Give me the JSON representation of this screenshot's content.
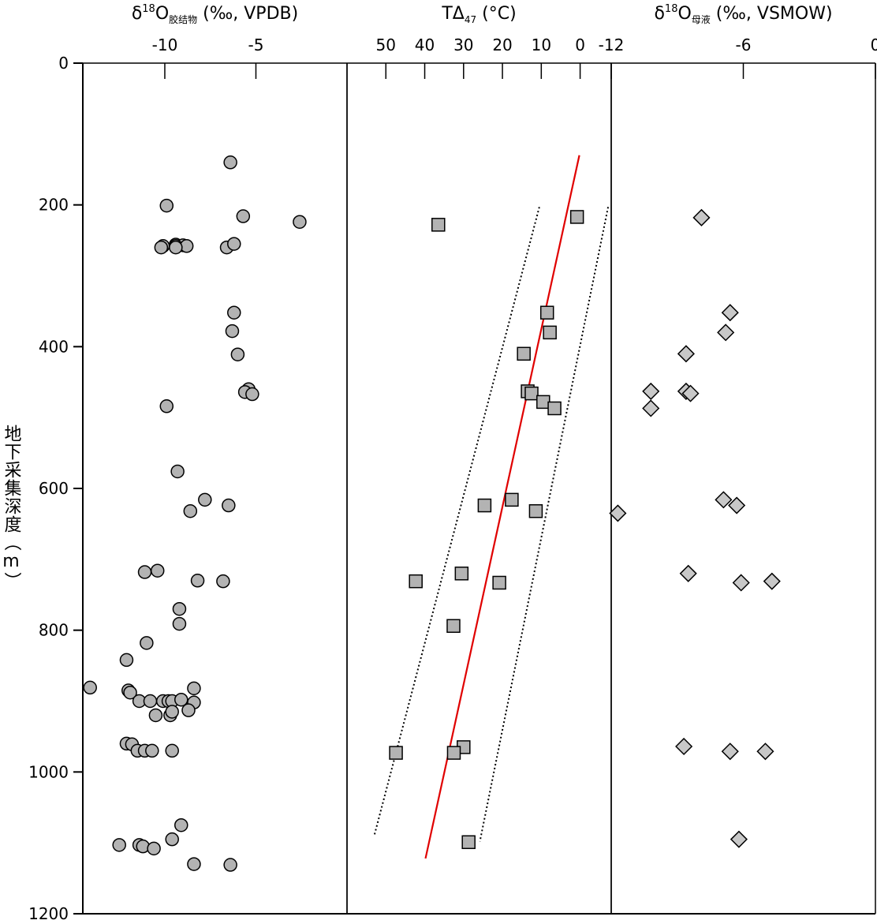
{
  "chart_data": [
    {
      "type": "scatter",
      "panel": "left",
      "title": {
        "main": "δ",
        "sup": "18",
        "o": "O",
        "sub": "胶结物",
        "rest": " (‰, VPDB)"
      },
      "xlim": [
        -14.5,
        0
      ],
      "xticks": [
        -10,
        -5
      ],
      "xticklabels": [
        "-10",
        "-5"
      ],
      "marker": "circle",
      "marker_color": "#b3b3b3",
      "points": [
        [
          -6.4,
          140
        ],
        [
          -9.9,
          201
        ],
        [
          -5.7,
          216
        ],
        [
          -2.6,
          224
        ],
        [
          -9.4,
          256
        ],
        [
          -9.0,
          257
        ],
        [
          -9.4,
          258
        ],
        [
          -10.1,
          258
        ],
        [
          -8.8,
          258
        ],
        [
          -10.2,
          260
        ],
        [
          -9.4,
          260
        ],
        [
          -6.6,
          260
        ],
        [
          -6.2,
          255
        ],
        [
          -6.2,
          352
        ],
        [
          -6.3,
          378
        ],
        [
          -6.0,
          411
        ],
        [
          -5.4,
          460
        ],
        [
          -5.6,
          464
        ],
        [
          -5.2,
          467
        ],
        [
          -9.9,
          484
        ],
        [
          -9.3,
          576
        ],
        [
          -7.8,
          616
        ],
        [
          -6.5,
          624
        ],
        [
          -8.6,
          632
        ],
        [
          -11.1,
          718
        ],
        [
          -10.4,
          716
        ],
        [
          -8.2,
          730
        ],
        [
          -6.8,
          731
        ],
        [
          -9.2,
          770
        ],
        [
          -9.2,
          791
        ],
        [
          -11.0,
          818
        ],
        [
          -12.1,
          842
        ],
        [
          -14.1,
          881
        ],
        [
          -12.0,
          885
        ],
        [
          -11.9,
          888
        ],
        [
          -8.4,
          882
        ],
        [
          -11.4,
          900
        ],
        [
          -10.8,
          900
        ],
        [
          -10.1,
          900
        ],
        [
          -9.8,
          900
        ],
        [
          -9.6,
          900
        ],
        [
          -9.1,
          898
        ],
        [
          -8.4,
          902
        ],
        [
          -10.5,
          920
        ],
        [
          -9.7,
          920
        ],
        [
          -8.7,
          913
        ],
        [
          -9.6,
          915
        ],
        [
          -12.1,
          960
        ],
        [
          -11.8,
          961
        ],
        [
          -11.5,
          970
        ],
        [
          -11.1,
          970
        ],
        [
          -10.7,
          970
        ],
        [
          -9.6,
          970
        ],
        [
          -9.1,
          1075
        ],
        [
          -9.6,
          1095
        ],
        [
          -12.5,
          1103
        ],
        [
          -11.4,
          1103
        ],
        [
          -11.2,
          1105
        ],
        [
          -10.6,
          1108
        ],
        [
          -8.4,
          1130
        ],
        [
          -6.4,
          1131
        ]
      ]
    },
    {
      "type": "scatter",
      "panel": "middle",
      "title": {
        "main": "TΔ",
        "sub": "47",
        "rest": " (°C)"
      },
      "xlim": [
        60,
        -8
      ],
      "xticks": [
        50,
        40,
        30,
        20,
        10,
        0
      ],
      "xticklabels": [
        "50",
        "40",
        "30",
        "20",
        "10",
        "0"
      ],
      "marker": "square",
      "marker_color": "#b3b3b3",
      "points": [
        [
          0.8,
          217
        ],
        [
          36.5,
          228
        ],
        [
          8.5,
          352
        ],
        [
          7.8,
          380
        ],
        [
          14.5,
          410
        ],
        [
          13.5,
          463
        ],
        [
          12.5,
          466
        ],
        [
          9.5,
          478
        ],
        [
          6.6,
          487
        ],
        [
          24.6,
          624
        ],
        [
          17.6,
          616
        ],
        [
          11.4,
          632
        ],
        [
          42.3,
          731
        ],
        [
          30.5,
          720
        ],
        [
          20.8,
          733
        ],
        [
          32.6,
          794
        ],
        [
          30.0,
          965
        ],
        [
          47.4,
          973
        ],
        [
          32.5,
          973
        ],
        [
          28.7,
          1099
        ]
      ],
      "regression_line": {
        "color": "#e00000",
        "points": [
          [
            0.2,
            130
          ],
          [
            39.8,
            1122
          ]
        ]
      },
      "confidence_lower": {
        "style": "dotted",
        "points": [
          [
            10.5,
            203
          ],
          [
            53.0,
            1090
          ]
        ]
      },
      "confidence_upper": {
        "style": "dotted",
        "points": [
          [
            -7.2,
            203
          ],
          [
            25.8,
            1098
          ]
        ]
      }
    },
    {
      "type": "scatter",
      "panel": "right",
      "title": {
        "main": "δ",
        "sup": "18",
        "o": "O",
        "sub": "母液",
        "rest": " (‰, VSMOW)"
      },
      "xlim": [
        -12,
        0
      ],
      "xticks": [
        -12,
        -6,
        0
      ],
      "xticklabels": [
        "-12",
        "-6",
        "0"
      ],
      "marker": "diamond",
      "marker_color": "#c8c8c8",
      "points": [
        [
          -7.9,
          218
        ],
        [
          -6.6,
          352
        ],
        [
          -6.8,
          380
        ],
        [
          -8.6,
          410
        ],
        [
          -10.2,
          463
        ],
        [
          -8.6,
          463
        ],
        [
          -8.4,
          466
        ],
        [
          -10.2,
          487
        ],
        [
          -11.7,
          635
        ],
        [
          -6.9,
          616
        ],
        [
          -6.3,
          624
        ],
        [
          -8.5,
          720
        ],
        [
          -6.1,
          733
        ],
        [
          -4.7,
          731
        ],
        [
          -8.7,
          964
        ],
        [
          -6.6,
          971
        ],
        [
          -5.0,
          971
        ],
        [
          -6.2,
          1095
        ]
      ]
    }
  ],
  "y_axis": {
    "label": "地下采集深度（m）",
    "ylim": [
      0,
      1200
    ],
    "ticks": [
      0,
      200,
      400,
      600,
      800,
      1000,
      1200
    ],
    "ticklabels": [
      "0",
      "200",
      "400",
      "600",
      "800",
      "1000",
      "1200"
    ],
    "inverted": true
  }
}
